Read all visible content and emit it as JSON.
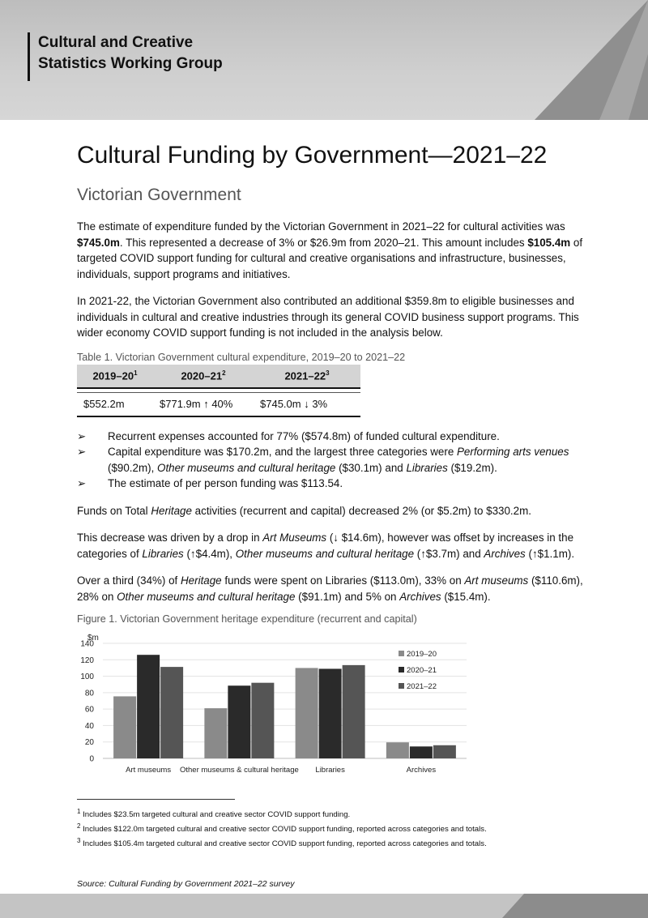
{
  "header": {
    "org_line1": "Cultural and Creative",
    "org_line2": "Statistics Working Group"
  },
  "title": "Cultural Funding by Government—2021–22",
  "subtitle": "Victorian Government",
  "para1": {
    "t1": "The estimate of expenditure funded by the Victorian Government in 2021–22 for cultural activities was ",
    "b1": "$745.0m",
    "t2": ". This represented a decrease of 3% or $26.9m from 2020–21. This amount includes ",
    "b2": "$105.4m",
    "t3": " of targeted COVID support funding for cultural and creative organisations and infrastructure, businesses, individuals, support programs and initiatives."
  },
  "para2": "In 2021-22, the Victorian Government also contributed an additional $359.8m to eligible businesses and individuals in cultural and creative industries through its general COVID business support programs. This wider economy COVID support funding is not included in the analysis below.",
  "table1": {
    "caption": "Table 1. Victorian Government cultural expenditure, 2019–20 to 2021–22",
    "headers": [
      {
        "label": "2019–20",
        "sup": "1"
      },
      {
        "label": "2020–21",
        "sup": "2"
      },
      {
        "label": "2021–22",
        "sup": "3"
      }
    ],
    "row": [
      "$552.2m",
      "$771.9m ↑ 40%",
      "$745.0m ↓ 3%"
    ]
  },
  "bullets": {
    "marker": "➢",
    "b1": "Recurrent expenses accounted for 77% ($574.8m) of funded cultural expenditure.",
    "b2": {
      "t1": "Capital expenditure was $170.2m, and the largest three categories were ",
      "i1": "Performing arts venues",
      "t2": " ($90.2m), ",
      "i2": "Other museums and cultural heritage",
      "t3": " ($30.1m) and ",
      "i3": "Libraries",
      "t4": " ($19.2m)."
    },
    "b3": "The estimate of per person funding was $113.54."
  },
  "para3": {
    "t1": "Funds on Total ",
    "i1": "Heritage",
    "t2": " activities (recurrent and capital) decreased 2% (or $5.2m) to $330.2m."
  },
  "para4": {
    "t1": "This decrease was driven by a drop in ",
    "i1": "Art Museums",
    "t2": " (↓ $14.6m), however was offset by increases in the categories of ",
    "i2": "Libraries",
    "t3": " (↑$4.4m), ",
    "i3": "Other museums and cultural heritage",
    "t4": " (↑$3.7m) and ",
    "i4": "Archives",
    "t5": " (↑$1.1m)."
  },
  "para5": {
    "t1": "Over a third (34%) of ",
    "i1": "Heritage",
    "t2": " funds were spent on Libraries ($113.0m), 33% on ",
    "i2": "Art museums",
    "t3": " ($110.6m), 28% on ",
    "i3": "Other museums and cultural heritage",
    "t4": " ($91.1m) and 5% on ",
    "i4": "Archives",
    "t5": " ($15.4m)."
  },
  "figure1_caption": "Figure 1. Victorian Government heritage expenditure (recurrent and capital)",
  "chart_data": {
    "type": "bar",
    "title": "",
    "ylabel": "$m",
    "xlabel": "",
    "ylim": [
      0,
      140
    ],
    "yticks": [
      0,
      20,
      40,
      60,
      80,
      100,
      120,
      140
    ],
    "categories": [
      "Art museums",
      "Other museums & cultural heritage",
      "Libraries",
      "Archives"
    ],
    "series": [
      {
        "name": "2019–20",
        "color": "#8a8a8a",
        "values": [
          75.5,
          61.0,
          110.0,
          19.5
        ]
      },
      {
        "name": "2020–21",
        "color": "#2a2a2a",
        "values": [
          126.0,
          88.5,
          109.0,
          14.5
        ]
      },
      {
        "name": "2021–22",
        "color": "#555555",
        "values": [
          111.3,
          92.0,
          113.5,
          16.0
        ]
      }
    ],
    "grid": true,
    "legend_position": "right"
  },
  "footnotes": [
    {
      "num": "1",
      "text": " Includes $23.5m targeted cultural and creative sector COVID support funding."
    },
    {
      "num": "2",
      "text": " Includes $122.0m targeted cultural and creative sector COVID support funding, reported across categories and totals."
    },
    {
      "num": "3",
      "text": " Includes $105.4m targeted cultural and creative sector COVID support funding, reported across categories and totals."
    }
  ],
  "source": "Source: Cultural Funding by Government 2021–22 survey"
}
